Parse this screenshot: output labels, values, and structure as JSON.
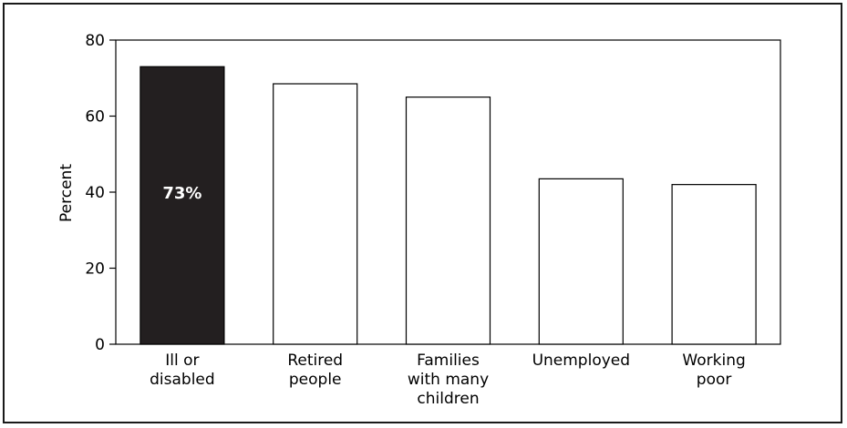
{
  "chart_data": {
    "type": "bar",
    "title": "",
    "xlabel": "",
    "ylabel": "Percent",
    "ylim": [
      0,
      80
    ],
    "yticks": [
      0,
      20,
      40,
      60,
      80
    ],
    "categories": [
      [
        "Ill or",
        "disabled"
      ],
      [
        "Retired",
        "people"
      ],
      [
        "Families",
        "with many",
        "children"
      ],
      [
        "Unemployed"
      ],
      [
        "Working",
        "poor"
      ]
    ],
    "values": [
      73,
      68.5,
      65,
      43.5,
      42
    ],
    "highlight_index": 0,
    "highlight_label": "73%",
    "colors": {
      "highlight": "#231f20",
      "bar": "#ffffff",
      "stroke": "#000000",
      "highlight_text": "#ffffff"
    },
    "grid": false,
    "legend": "none"
  }
}
